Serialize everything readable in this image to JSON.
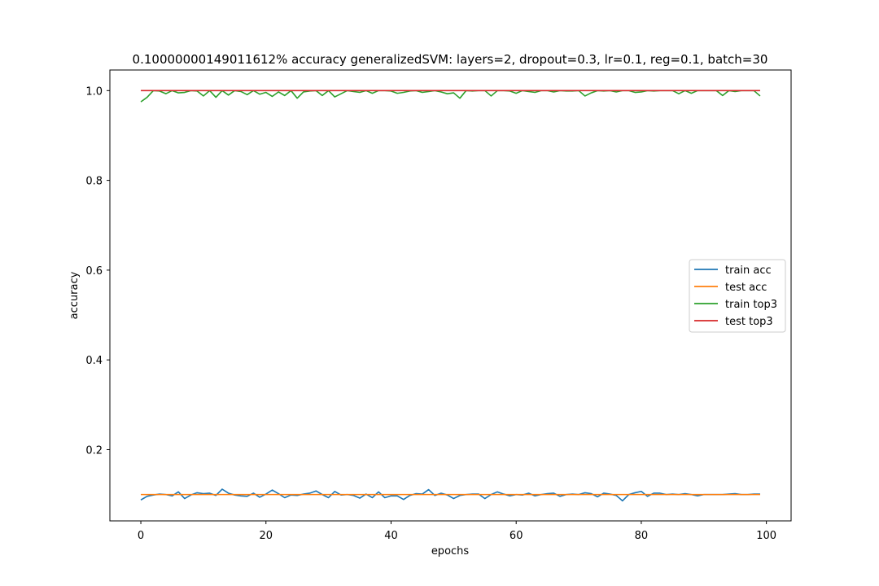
{
  "chart_data": {
    "type": "line",
    "title": "0.10000000149011612% accuracy generalizedSVM: layers=2, dropout=0.3, lr=0.1, reg=0.1, batch=30",
    "xlabel": "epochs",
    "ylabel": "accuracy",
    "xlim": [
      -4.95,
      103.95
    ],
    "ylim": [
      0.0413,
      1.0459
    ],
    "xticks": [
      0,
      20,
      40,
      60,
      80,
      100
    ],
    "yticks": [
      0.2,
      0.4,
      0.6,
      0.8,
      1.0
    ],
    "ytick_labels": [
      "0.2",
      "0.4",
      "0.6",
      "0.8",
      "1.0"
    ],
    "grid": false,
    "legend": "center-right",
    "x": [
      0,
      1,
      2,
      3,
      4,
      5,
      6,
      7,
      8,
      9,
      10,
      11,
      12,
      13,
      14,
      15,
      16,
      17,
      18,
      19,
      20,
      21,
      22,
      23,
      24,
      25,
      26,
      27,
      28,
      29,
      30,
      31,
      32,
      33,
      34,
      35,
      36,
      37,
      38,
      39,
      40,
      41,
      42,
      43,
      44,
      45,
      46,
      47,
      48,
      49,
      50,
      51,
      52,
      53,
      54,
      55,
      56,
      57,
      58,
      59,
      60,
      61,
      62,
      63,
      64,
      65,
      66,
      67,
      68,
      69,
      70,
      71,
      72,
      73,
      74,
      75,
      76,
      77,
      78,
      79,
      80,
      81,
      82,
      83,
      84,
      85,
      86,
      87,
      88,
      89,
      90,
      91,
      92,
      93,
      94,
      95,
      96,
      97,
      98,
      99
    ],
    "series": [
      {
        "name": "train acc",
        "color": "#1f77b4",
        "values": [
          0.088,
          0.096,
          0.099,
          0.101,
          0.1,
          0.097,
          0.106,
          0.091,
          0.099,
          0.104,
          0.102,
          0.103,
          0.098,
          0.112,
          0.103,
          0.099,
          0.097,
          0.096,
          0.103,
          0.094,
          0.101,
          0.11,
          0.102,
          0.093,
          0.099,
          0.098,
          0.101,
          0.103,
          0.108,
          0.1,
          0.093,
          0.107,
          0.099,
          0.1,
          0.098,
          0.092,
          0.101,
          0.093,
          0.106,
          0.093,
          0.097,
          0.097,
          0.089,
          0.098,
          0.102,
          0.101,
          0.111,
          0.098,
          0.103,
          0.099,
          0.091,
          0.098,
          0.1,
          0.101,
          0.101,
          0.091,
          0.1,
          0.106,
          0.101,
          0.097,
          0.1,
          0.099,
          0.103,
          0.097,
          0.1,
          0.102,
          0.103,
          0.096,
          0.1,
          0.101,
          0.1,
          0.104,
          0.102,
          0.095,
          0.103,
          0.101,
          0.098,
          0.086,
          0.1,
          0.104,
          0.107,
          0.096,
          0.103,
          0.103,
          0.1,
          0.101,
          0.1,
          0.102,
          0.1,
          0.097,
          0.1,
          0.1,
          0.1,
          0.1,
          0.101,
          0.102,
          0.1,
          0.1,
          0.101,
          0.101
        ]
      },
      {
        "name": "test acc",
        "color": "#ff7f0e",
        "values": [
          0.1,
          0.1,
          0.1,
          0.1,
          0.1,
          0.1,
          0.1,
          0.1,
          0.1,
          0.1,
          0.1,
          0.1,
          0.1,
          0.1,
          0.1,
          0.1,
          0.1,
          0.1,
          0.1,
          0.1,
          0.1,
          0.1,
          0.1,
          0.1,
          0.1,
          0.1,
          0.1,
          0.1,
          0.1,
          0.1,
          0.1,
          0.1,
          0.1,
          0.1,
          0.1,
          0.1,
          0.1,
          0.1,
          0.1,
          0.1,
          0.1,
          0.1,
          0.1,
          0.1,
          0.1,
          0.1,
          0.1,
          0.1,
          0.1,
          0.1,
          0.1,
          0.1,
          0.1,
          0.1,
          0.1,
          0.1,
          0.1,
          0.1,
          0.1,
          0.1,
          0.1,
          0.1,
          0.1,
          0.1,
          0.1,
          0.1,
          0.1,
          0.1,
          0.1,
          0.1,
          0.1,
          0.1,
          0.1,
          0.1,
          0.1,
          0.1,
          0.1,
          0.1,
          0.1,
          0.1,
          0.1,
          0.1,
          0.1,
          0.1,
          0.1,
          0.1,
          0.1,
          0.1,
          0.1,
          0.1,
          0.1,
          0.1,
          0.1,
          0.1,
          0.1,
          0.1,
          0.1,
          0.1,
          0.1,
          0.1
        ]
      },
      {
        "name": "train top3",
        "color": "#2ca02c",
        "values": [
          0.975,
          0.985,
          1.0,
          0.999,
          0.993,
          1.0,
          0.995,
          0.996,
          1.0,
          0.999,
          0.988,
          1.0,
          0.985,
          1.0,
          0.99,
          1.0,
          0.998,
          0.991,
          1.0,
          0.992,
          0.996,
          0.987,
          0.997,
          0.989,
          1.0,
          0.983,
          0.997,
          0.999,
          1.0,
          0.989,
          1.0,
          0.986,
          0.993,
          1.0,
          0.998,
          0.996,
          1.0,
          0.994,
          1.0,
          1.0,
          0.999,
          0.994,
          0.996,
          0.999,
          1.0,
          0.996,
          0.998,
          1.0,
          0.997,
          0.993,
          0.995,
          0.983,
          1.0,
          0.999,
          1.0,
          1.0,
          0.988,
          1.0,
          1.0,
          0.999,
          0.994,
          1.0,
          0.998,
          0.996,
          1.0,
          1.0,
          0.997,
          1.0,
          0.999,
          0.999,
          1.0,
          0.988,
          0.995,
          1.0,
          0.999,
          1.0,
          0.997,
          1.0,
          1.0,
          0.996,
          0.997,
          1.0,
          0.999,
          1.0,
          1.0,
          1.0,
          0.993,
          1.0,
          0.994,
          1.0,
          1.0,
          1.0,
          1.0,
          0.989,
          1.0,
          0.998,
          1.0,
          1.0,
          1.0,
          0.988
        ]
      },
      {
        "name": "test top3",
        "color": "#d62728",
        "values": [
          1.0,
          1.0,
          1.0,
          1.0,
          1.0,
          1.0,
          1.0,
          1.0,
          1.0,
          1.0,
          1.0,
          1.0,
          1.0,
          1.0,
          1.0,
          1.0,
          1.0,
          1.0,
          1.0,
          1.0,
          1.0,
          1.0,
          1.0,
          1.0,
          1.0,
          1.0,
          1.0,
          1.0,
          1.0,
          1.0,
          1.0,
          1.0,
          1.0,
          1.0,
          1.0,
          1.0,
          1.0,
          1.0,
          1.0,
          1.0,
          1.0,
          1.0,
          1.0,
          1.0,
          1.0,
          1.0,
          1.0,
          1.0,
          1.0,
          1.0,
          1.0,
          1.0,
          1.0,
          1.0,
          1.0,
          1.0,
          1.0,
          1.0,
          1.0,
          1.0,
          1.0,
          1.0,
          1.0,
          1.0,
          1.0,
          1.0,
          1.0,
          1.0,
          1.0,
          1.0,
          1.0,
          1.0,
          1.0,
          1.0,
          1.0,
          1.0,
          1.0,
          1.0,
          1.0,
          1.0,
          1.0,
          1.0,
          1.0,
          1.0,
          1.0,
          1.0,
          1.0,
          1.0,
          1.0,
          1.0,
          1.0,
          1.0,
          1.0,
          1.0,
          1.0,
          1.0,
          1.0,
          1.0,
          1.0,
          1.0
        ]
      }
    ]
  }
}
